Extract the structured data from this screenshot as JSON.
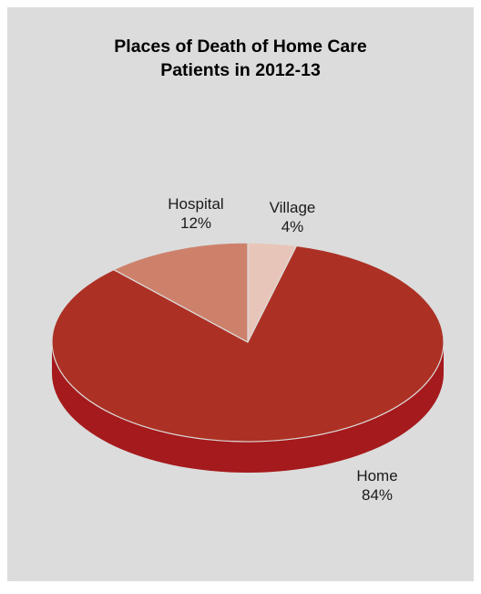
{
  "chart_data": {
    "type": "pie",
    "title_lines": [
      "Places of Death of Home Care",
      "Patients in 2012-13"
    ],
    "slices": [
      {
        "name": "Home",
        "value": 84,
        "label": "84%",
        "color": "#ac3124",
        "side_color": "#a51a1c"
      },
      {
        "name": "Hospital",
        "value": 12,
        "label": "12%",
        "color": "#cd816b",
        "side_color": "#b86a55"
      },
      {
        "name": "Village",
        "value": 4,
        "label": "4%",
        "color": "#e8c5b9",
        "side_color": "#d4ab9e"
      }
    ],
    "legend": "none",
    "three_d": true
  }
}
